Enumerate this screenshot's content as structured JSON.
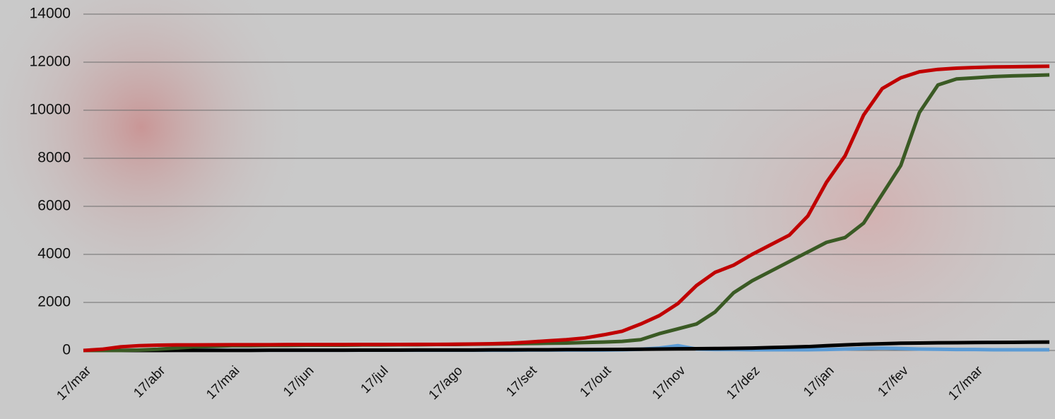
{
  "chart_data": {
    "type": "line",
    "categories": [
      "17/mar",
      null,
      null,
      null,
      "17/abr",
      null,
      null,
      null,
      "17/mai",
      null,
      null,
      null,
      "17/jun",
      null,
      null,
      null,
      "17/jul",
      null,
      null,
      null,
      "17/ago",
      null,
      null,
      null,
      "17/set",
      null,
      null,
      null,
      "17/out",
      null,
      null,
      null,
      "17/nov",
      null,
      null,
      null,
      "17/dez",
      null,
      null,
      null,
      "17/jan",
      null,
      null,
      null,
      "17/fev",
      null,
      null,
      null,
      "17/mar",
      null,
      null,
      null,
      null
    ],
    "series": [
      {
        "color": "#5b9bd5",
        "values": [
          0,
          0,
          5,
          10,
          10,
          10,
          10,
          10,
          10,
          10,
          10,
          10,
          10,
          10,
          10,
          10,
          10,
          10,
          10,
          10,
          10,
          10,
          10,
          10,
          20,
          20,
          20,
          20,
          20,
          30,
          50,
          100,
          200,
          60,
          40,
          40,
          30,
          30,
          30,
          30,
          40,
          60,
          80,
          100,
          80,
          60,
          50,
          40,
          40,
          30,
          30,
          30,
          30
        ]
      },
      {
        "color": "#000000",
        "values": [
          0,
          0,
          0,
          0,
          0,
          5,
          5,
          5,
          5,
          5,
          10,
          10,
          10,
          10,
          10,
          15,
          15,
          15,
          20,
          20,
          20,
          20,
          25,
          25,
          30,
          30,
          35,
          35,
          40,
          45,
          50,
          60,
          70,
          75,
          80,
          90,
          100,
          120,
          140,
          160,
          200,
          230,
          260,
          280,
          300,
          310,
          320,
          325,
          330,
          335,
          340,
          345,
          350
        ]
      },
      {
        "color": "#3a5a24",
        "values": [
          0,
          0,
          0,
          20,
          50,
          100,
          150,
          170,
          200,
          200,
          210,
          210,
          220,
          220,
          220,
          230,
          230,
          240,
          240,
          250,
          250,
          260,
          270,
          280,
          290,
          300,
          310,
          330,
          350,
          380,
          450,
          700,
          900,
          1100,
          1600,
          2400,
          2900,
          3300,
          3700,
          4100,
          4500,
          4700,
          5300,
          6500,
          7700,
          9900,
          11050,
          11300,
          11350,
          11400,
          11430,
          11450,
          11470
        ]
      },
      {
        "color": "#c00000",
        "values": [
          0,
          50,
          150,
          200,
          220,
          230,
          230,
          235,
          240,
          240,
          240,
          245,
          245,
          245,
          245,
          250,
          250,
          250,
          255,
          255,
          260,
          270,
          280,
          300,
          350,
          400,
          450,
          520,
          650,
          800,
          1100,
          1450,
          1950,
          2700,
          3250,
          3550,
          4000,
          4400,
          4800,
          5600,
          7000,
          8100,
          9800,
          10900,
          11350,
          11600,
          11700,
          11750,
          11780,
          11800,
          11810,
          11820,
          11830
        ]
      }
    ],
    "ylim": [
      0,
      14000
    ],
    "yticks": [
      0,
      2000,
      4000,
      6000,
      8000,
      10000,
      12000,
      14000
    ],
    "grid": true
  }
}
